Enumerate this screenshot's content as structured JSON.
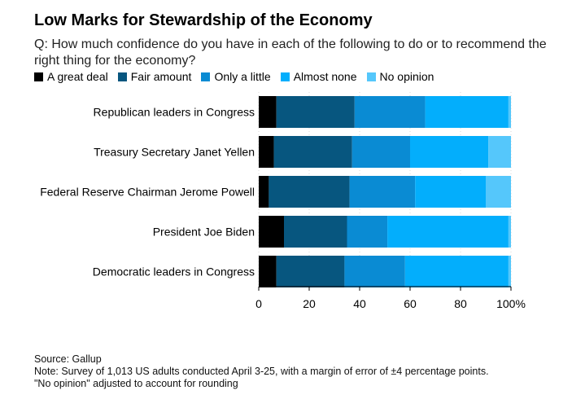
{
  "title": "Low Marks for Stewardship of the Economy",
  "subtitle": "Q: How much confidence do you have in each of the following to do or to recommend the right thing for the economy?",
  "chart_data": {
    "type": "bar",
    "orientation": "horizontal",
    "stacked": true,
    "title": "Low Marks for Stewardship of the Economy",
    "categories": [
      "Republican leaders in Congress",
      "Treasury Secretary Janet Yellen",
      "Federal Reserve Chairman Jerome Powell",
      "President Joe Biden",
      "Democratic leaders in Congress"
    ],
    "series": [
      {
        "name": "A great deal",
        "color": "#000000",
        "values": [
          7,
          6,
          4,
          10,
          7
        ]
      },
      {
        "name": "Fair amount",
        "color": "#07567f",
        "values": [
          31,
          31,
          32,
          25,
          27
        ]
      },
      {
        "name": "Only a little",
        "color": "#0a8bd3",
        "values": [
          28,
          23,
          26,
          16,
          24
        ]
      },
      {
        "name": "Almost none",
        "color": "#03aefc",
        "values": [
          33,
          31,
          28,
          48,
          41
        ]
      },
      {
        "name": "No opinion",
        "color": "#55c7fb",
        "values": [
          1,
          9,
          10,
          1,
          1
        ]
      }
    ],
    "xlim": [
      0,
      100
    ],
    "x_ticks": [
      "0",
      "20",
      "40",
      "60",
      "80",
      "100%"
    ],
    "grid": true,
    "legend_position": "top-left"
  },
  "footer": {
    "source": "Source: Gallup",
    "note": "Note: Survey of 1,013 US adults conducted April 3-25, with a margin of error of ±4 percentage points.",
    "note2": "\"No opinion\" adjusted to account for rounding"
  }
}
